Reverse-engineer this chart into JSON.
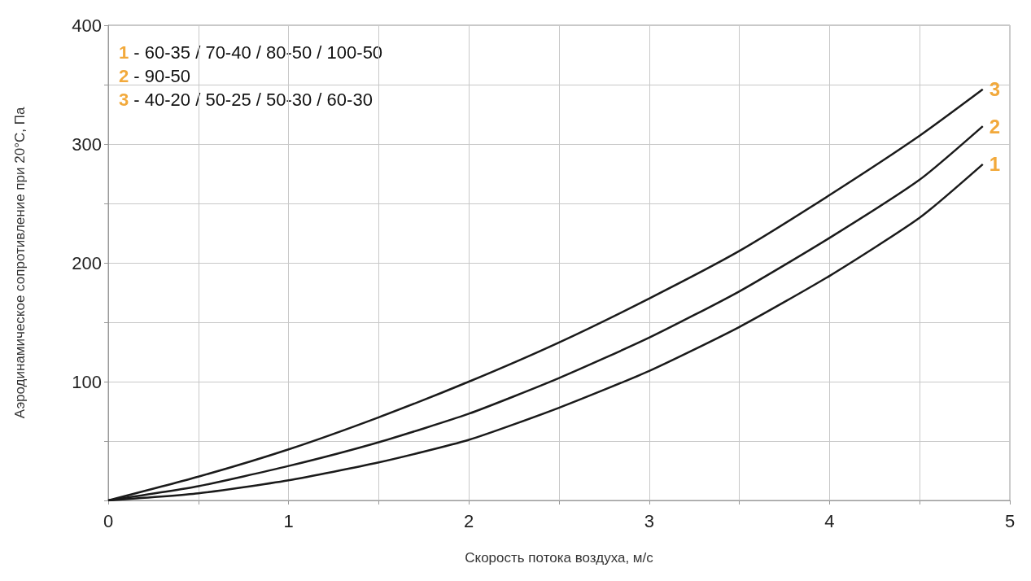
{
  "chart_data": {
    "type": "line",
    "xlabel": "Скорость потока воздуха, м/с",
    "ylabel": "Аэродинамическое сопротивление при 20°C, Па",
    "x": [
      0,
      0.5,
      1,
      1.5,
      2,
      2.5,
      3,
      3.5,
      4,
      4.5,
      4.85
    ],
    "series": [
      {
        "name": "1",
        "color": "#1a1a1a",
        "values": [
          0,
          6,
          17,
          32,
          51,
          78,
          109,
          146,
          189,
          238,
          283
        ]
      },
      {
        "name": "2",
        "color": "#1a1a1a",
        "values": [
          0,
          12,
          29,
          49,
          73,
          103,
          137,
          176,
          221,
          270,
          315
        ]
      },
      {
        "name": "3",
        "color": "#1a1a1a",
        "values": [
          0,
          20,
          43,
          70,
          100,
          133,
          170,
          210,
          257,
          307,
          346
        ]
      }
    ],
    "annotations": [
      "1 - 60-35 / 70-40 / 80-50 / 100-50",
      "2 - 90-50",
      "3 - 40-20 / 50-25 / 50-30 / 60-30"
    ],
    "xlim": [
      0,
      5
    ],
    "ylim": [
      0,
      400
    ],
    "xticks": [
      0,
      {
        "value": 0.5,
        "label": null
      },
      1,
      {
        "value": 1.5,
        "label": null
      },
      2,
      {
        "value": 2.5,
        "label": null
      },
      3,
      {
        "value": 3.5,
        "label": null
      },
      4,
      {
        "value": 4.5,
        "label": null
      },
      5
    ],
    "yticks": [
      {
        "value": 0,
        "label": null
      },
      {
        "value": 50,
        "label": null
      },
      100,
      {
        "value": 150,
        "label": null
      },
      200,
      {
        "value": 250,
        "label": null
      },
      300,
      {
        "value": 350,
        "label": null
      },
      400
    ],
    "grid": true,
    "legend": "right",
    "marker": "none",
    "line_style": "solid"
  }
}
